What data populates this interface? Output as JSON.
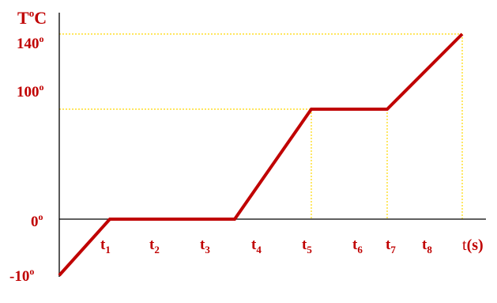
{
  "chart_data": {
    "type": "line",
    "ylabel": {
      "base": "T",
      "sup": "o",
      "rest": "C"
    },
    "y_ticks": [
      {
        "value": -10,
        "label": "-10",
        "sup": "o"
      },
      {
        "value": 0,
        "label": "0",
        "sup": "o"
      },
      {
        "value": 100,
        "label": "100",
        "sup": "o"
      },
      {
        "value": 140,
        "label": "140",
        "sup": "o"
      }
    ],
    "x_ticks": [
      {
        "label": "t",
        "sub": "1"
      },
      {
        "label": "t",
        "sub": "2"
      },
      {
        "label": "t",
        "sub": "3"
      },
      {
        "label": "t",
        "sub": "4"
      },
      {
        "label": "t",
        "sub": "5"
      },
      {
        "label": "t",
        "sub": "6"
      },
      {
        "label": "t",
        "sub": "7"
      },
      {
        "label": "t",
        "sub": "8"
      }
    ],
    "xlabel": {
      "prefix": "t",
      "rest": "(s)"
    },
    "ylim": [
      -10,
      140
    ],
    "line_color": "#c00000",
    "guide_color": "#ffd800",
    "series": [
      {
        "points": [
          {
            "x": "0",
            "y": -10
          },
          {
            "x": "t1",
            "y": 0
          },
          {
            "x": "t3",
            "y": 0
          },
          {
            "x": "t5",
            "y": 100
          },
          {
            "x": "t7",
            "y": 100
          },
          {
            "x": "t8",
            "y": 140
          }
        ]
      }
    ]
  }
}
